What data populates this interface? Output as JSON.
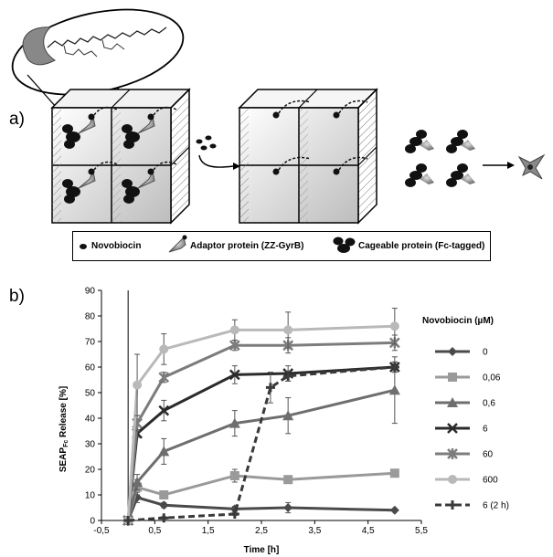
{
  "panels": {
    "a": "a)",
    "b": "b)"
  },
  "legend_a": {
    "novobiocin": "Novobiocin",
    "adaptor": "Adaptor protein (ZZ-GyrB)",
    "cageable": "Cageable protein (Fc-tagged)"
  },
  "colors": {
    "s0": "#4a4a4a",
    "s006": "#9a9a9a",
    "s06": "#6e6e6e",
    "s6": "#2b2b2b",
    "s60": "#7c7c7c",
    "s600": "#b9b9b9",
    "s6_2h": "#3a3a3a"
  },
  "chart_data": {
    "type": "line",
    "xlabel": "Time [h]",
    "ylabel": "SEAP",
    "ylabel_sub": "Fc",
    "ylabel_rest": " Release [%]",
    "xlim": [
      -0.5,
      5.5
    ],
    "ylim": [
      0,
      90
    ],
    "xticks": [
      "-0,5",
      "0,5",
      "1,5",
      "2,5",
      "3,5",
      "4,5",
      "5,5"
    ],
    "xtick_values": [
      -0.5,
      0.5,
      1.5,
      2.5,
      3.5,
      4.5,
      5.5
    ],
    "yticks": [
      "0",
      "10",
      "20",
      "30",
      "40",
      "50",
      "60",
      "70",
      "80",
      "90"
    ],
    "ytick_values": [
      0,
      10,
      20,
      30,
      40,
      50,
      60,
      70,
      80,
      90
    ],
    "legend_title": "Novobiocin (µM)",
    "series": [
      {
        "name": "0",
        "marker": "diamond",
        "dashed": false,
        "x": [
          0,
          0.17,
          0.67,
          2,
          3,
          5
        ],
        "y": [
          0,
          9,
          6,
          4.5,
          5,
          4
        ],
        "err": [
          0,
          2,
          1,
          1,
          2,
          0.5
        ]
      },
      {
        "name": "0,06",
        "marker": "square",
        "dashed": false,
        "x": [
          0,
          0.17,
          0.67,
          2,
          3,
          5
        ],
        "y": [
          0,
          13,
          10,
          17.5,
          16,
          18.5
        ],
        "err": [
          0,
          3,
          1,
          2.5,
          1,
          1.5
        ]
      },
      {
        "name": "0,6",
        "marker": "triangle",
        "dashed": false,
        "x": [
          0,
          0.17,
          0.67,
          2,
          3,
          5
        ],
        "y": [
          0,
          15,
          27,
          38,
          41,
          51
        ],
        "err": [
          0,
          3,
          5,
          5,
          7,
          13
        ]
      },
      {
        "name": "6",
        "marker": "x",
        "dashed": false,
        "x": [
          0,
          0.17,
          0.67,
          2,
          3,
          5
        ],
        "y": [
          0,
          34,
          43,
          57,
          57.5,
          60
        ],
        "err": [
          0,
          1.5,
          4,
          3.5,
          3,
          2
        ]
      },
      {
        "name": "60",
        "marker": "star",
        "dashed": false,
        "x": [
          0,
          0.17,
          0.67,
          2,
          3,
          5
        ],
        "y": [
          0,
          38,
          56,
          68.5,
          68.5,
          69.5
        ],
        "err": [
          0,
          3,
          2,
          2,
          3,
          3
        ]
      },
      {
        "name": "600",
        "marker": "circle",
        "dashed": false,
        "x": [
          0,
          0.17,
          0.67,
          2,
          3,
          5
        ],
        "y": [
          0,
          53,
          67,
          74.5,
          74.5,
          76
        ],
        "err": [
          0,
          12,
          6,
          4,
          7,
          7
        ]
      },
      {
        "name": "6 (2 h)",
        "marker": "plus",
        "dashed": true,
        "x": [
          0,
          0.67,
          2,
          2.67,
          3,
          5
        ],
        "y": [
          0,
          1,
          2.5,
          52,
          56.5,
          60
        ],
        "err": [
          0,
          0.5,
          0.5,
          6,
          2,
          2
        ]
      }
    ]
  }
}
